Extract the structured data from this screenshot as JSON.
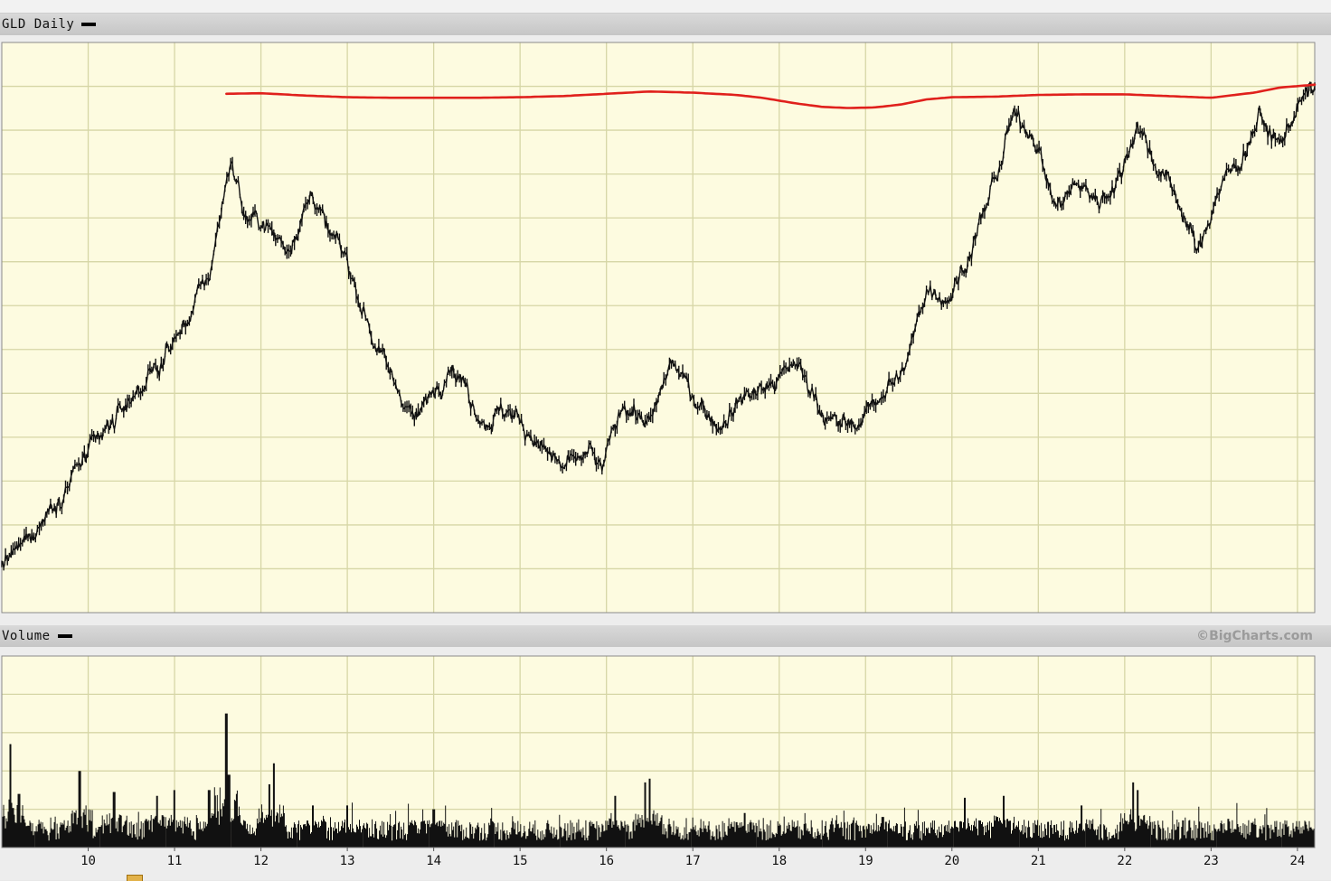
{
  "price_panel": {
    "title": "GLD Daily"
  },
  "volume_panel": {
    "title": "Volume",
    "credit": "©BigCharts.com"
  },
  "colors": {
    "plot_background": "#fdfbe0",
    "grid": "#d6d6a6",
    "price": "#111111",
    "moving_average": "#e0201c",
    "volume": "#111111"
  },
  "chart_data": [
    {
      "type": "line",
      "title": "GLD Daily",
      "x_label": "",
      "y_label": "",
      "x_ticks": [
        "10",
        "11",
        "12",
        "13",
        "14",
        "15",
        "16",
        "17",
        "18",
        "19",
        "20",
        "21",
        "22",
        "23",
        "24"
      ],
      "x_range": [
        9,
        24.2
      ],
      "y_range": [
        0,
        100
      ],
      "y_tick_labels_visible": false,
      "grid": true,
      "note": "y values are relative positions on the unlabeled price axis (0 = bottom, 100 = top of plot)",
      "series": [
        {
          "kind": "price",
          "x": [
            9.0,
            9.3,
            9.6,
            9.9,
            10.2,
            10.5,
            10.8,
            11.1,
            11.4,
            11.65,
            11.8,
            12.05,
            12.3,
            12.6,
            12.75,
            13.0,
            13.3,
            13.55,
            13.8,
            14.0,
            14.2,
            14.6,
            14.85,
            15.2,
            15.5,
            15.8,
            15.95,
            16.2,
            16.5,
            16.75,
            16.95,
            17.3,
            17.6,
            17.9,
            18.2,
            18.6,
            18.9,
            19.2,
            19.45,
            19.7,
            19.95,
            20.15,
            20.35,
            20.55,
            20.7,
            20.95,
            21.2,
            21.45,
            21.7,
            21.95,
            22.15,
            22.35,
            22.6,
            22.85,
            23.1,
            23.3,
            23.55,
            23.8,
            24.0,
            24.2
          ],
          "y": [
            8,
            13,
            19,
            26,
            31,
            38,
            43,
            50,
            59,
            80,
            70,
            68,
            64,
            74,
            67,
            62,
            48,
            40,
            34,
            39,
            44,
            33,
            36,
            30,
            25,
            28,
            25,
            37,
            33,
            44,
            39,
            33,
            38,
            40,
            44,
            33,
            33,
            39,
            42,
            57,
            55,
            61,
            69,
            78,
            87,
            84,
            71,
            75,
            72,
            77,
            86,
            79,
            73,
            63,
            75,
            78,
            87,
            82,
            89,
            92
          ]
        },
        {
          "kind": "moving_average",
          "x": [
            11.6,
            12.0,
            12.5,
            13.0,
            13.5,
            14.0,
            14.5,
            15.0,
            15.5,
            16.0,
            16.5,
            17.0,
            17.5,
            17.8,
            18.2,
            18.5,
            18.8,
            19.1,
            19.4,
            19.7,
            20.0,
            20.5,
            21.0,
            21.5,
            22.0,
            22.5,
            23.0,
            23.5,
            23.8,
            24.2
          ],
          "y": [
            91,
            91.1,
            90.7,
            90.4,
            90.3,
            90.3,
            90.3,
            90.4,
            90.6,
            91.0,
            91.4,
            91.2,
            90.8,
            90.3,
            89.3,
            88.7,
            88.5,
            88.6,
            89.1,
            90.0,
            90.4,
            90.5,
            90.8,
            90.9,
            90.9,
            90.6,
            90.3,
            91.2,
            92.1,
            92.6
          ]
        }
      ]
    },
    {
      "type": "bar",
      "title": "Volume",
      "x_label": "",
      "y_label": "",
      "x_ticks": [
        "10",
        "11",
        "12",
        "13",
        "14",
        "15",
        "16",
        "17",
        "18",
        "19",
        "20",
        "21",
        "22",
        "23",
        "24"
      ],
      "x_range": [
        9,
        24.2
      ],
      "y_range": [
        0,
        100
      ],
      "y_tick_labels_visible": false,
      "grid": true,
      "note": "relative volume; baseline noise ~10-15 with spikes",
      "series": [
        {
          "name": "Volume",
          "baseline": 12,
          "spikes_x": [
            9.1,
            9.2,
            9.9,
            10.3,
            10.8,
            11.0,
            11.4,
            11.6,
            11.63,
            11.7,
            12.1,
            12.15,
            12.6,
            13.0,
            14.0,
            16.1,
            16.45,
            16.5,
            17.6,
            19.2,
            20.15,
            20.6,
            21.5,
            22.1,
            22.15,
            23.2,
            24.1
          ],
          "spikes_y": [
            54,
            28,
            40,
            29,
            27,
            30,
            30,
            70,
            38,
            22,
            33,
            44,
            22,
            22,
            20,
            27,
            34,
            36,
            18,
            16,
            26,
            27,
            22,
            34,
            30,
            15,
            12
          ]
        }
      ]
    }
  ]
}
